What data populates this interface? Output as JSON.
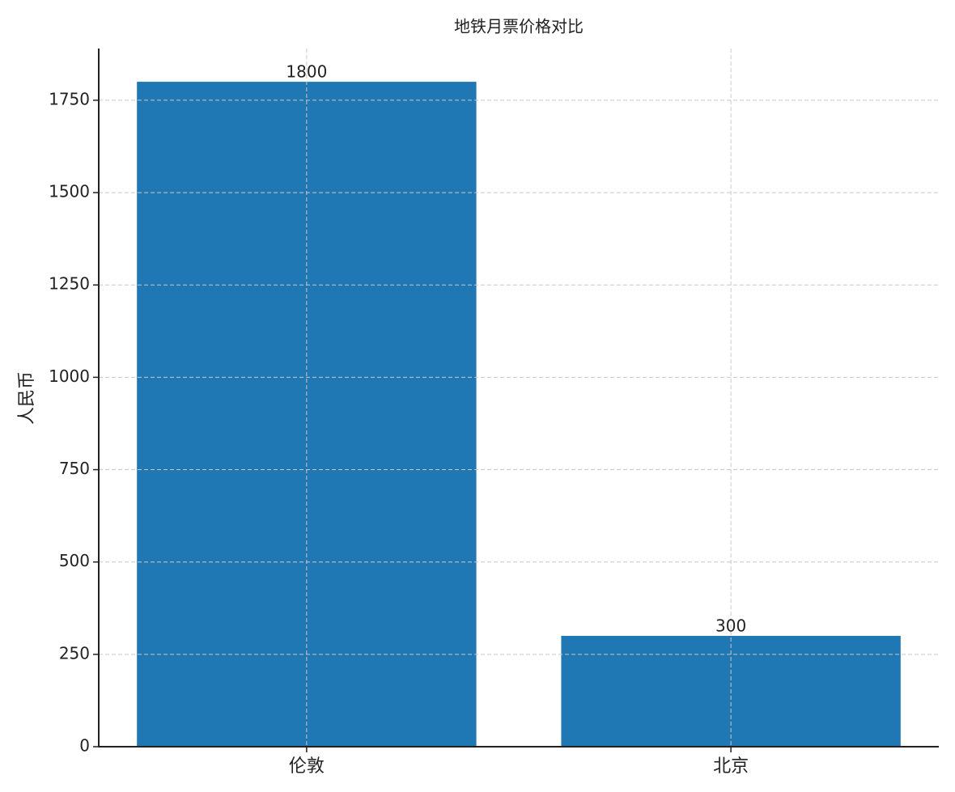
{
  "chart_data": {
    "type": "bar",
    "title": "地铁月票价格对比",
    "y_label": "人民币",
    "categories": [
      "伦敦",
      "北京"
    ],
    "values": [
      1800,
      300
    ],
    "color": "#1f77b4",
    "ylim": [
      0,
      1890
    ],
    "yticks": [
      0,
      250,
      500,
      750,
      1000,
      1250,
      1500,
      1750
    ],
    "grid": true
  }
}
